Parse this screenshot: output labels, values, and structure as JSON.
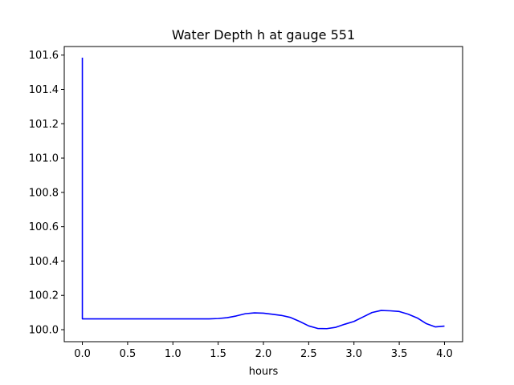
{
  "chart_data": {
    "type": "line",
    "title": "Water Depth h at gauge 551",
    "xlabel": "hours",
    "ylabel": "",
    "xlim": [
      -0.2,
      4.2
    ],
    "ylim": [
      99.93,
      101.65
    ],
    "xticks": [
      0.0,
      0.5,
      1.0,
      1.5,
      2.0,
      2.5,
      3.0,
      3.5,
      4.0
    ],
    "xtick_labels": [
      "0.0",
      "0.5",
      "1.0",
      "1.5",
      "2.0",
      "2.5",
      "3.0",
      "3.5",
      "4.0"
    ],
    "yticks": [
      100.0,
      100.2,
      100.4,
      100.6,
      100.8,
      101.0,
      101.2,
      101.4,
      101.6
    ],
    "ytick_labels": [
      "100.0",
      "100.2",
      "100.4",
      "100.6",
      "100.8",
      "101.0",
      "101.2",
      "101.4",
      "101.6"
    ],
    "grid": false,
    "series": [
      {
        "color": "#0000ff",
        "x": [
          0.0,
          0.0,
          0.5,
          1.0,
          1.4,
          1.5,
          1.6,
          1.7,
          1.8,
          1.9,
          2.0,
          2.1,
          2.2,
          2.3,
          2.4,
          2.5,
          2.6,
          2.7,
          2.8,
          2.9,
          3.0,
          3.1,
          3.2,
          3.3,
          3.4,
          3.5,
          3.6,
          3.7,
          3.8,
          3.9,
          4.0
        ],
        "values": [
          101.585,
          100.063,
          100.063,
          100.063,
          100.063,
          100.065,
          100.07,
          100.08,
          100.093,
          100.098,
          100.096,
          100.09,
          100.083,
          100.071,
          100.048,
          100.022,
          100.007,
          100.006,
          100.014,
          100.032,
          100.048,
          100.074,
          100.1,
          100.112,
          100.11,
          100.106,
          100.09,
          100.068,
          100.035,
          100.016,
          100.021
        ]
      }
    ]
  }
}
